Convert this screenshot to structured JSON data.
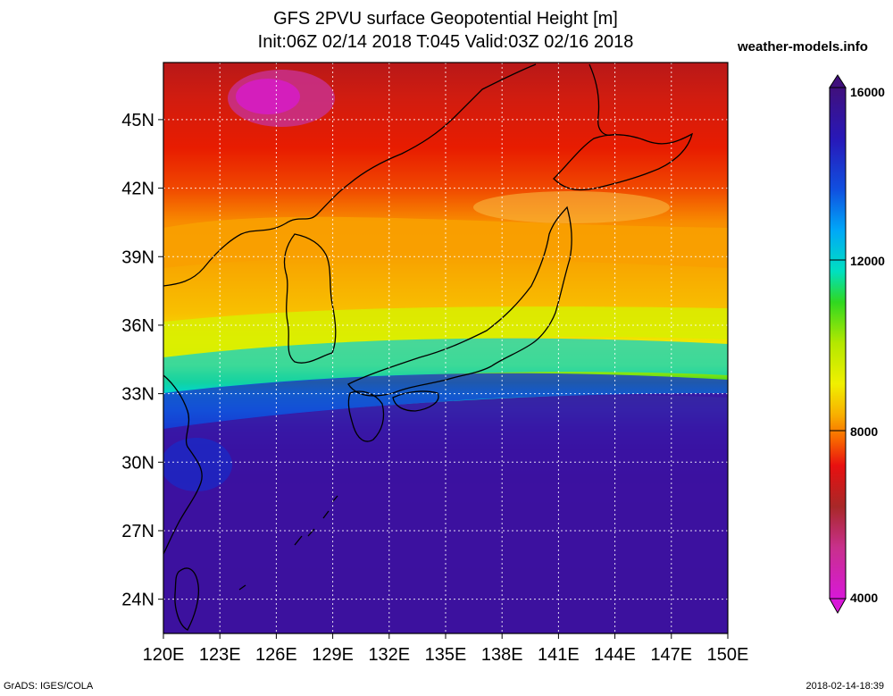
{
  "title_line1": "GFS 2PVU surface Geopotential Height [m]",
  "title_line2": "Init:06Z 02/14 2018 T:045 Valid:03Z 02/16 2018",
  "brand": "weather-models.info",
  "footer_left": "GrADS: IGES/COLA",
  "footer_right": "2018-02-14-18:39",
  "map": {
    "lon_labels": [
      "120E",
      "123E",
      "126E",
      "129E",
      "132E",
      "135E",
      "138E",
      "141E",
      "144E",
      "147E",
      "150E"
    ],
    "lat_labels": [
      "45N",
      "42N",
      "39N",
      "36N",
      "33N",
      "30N",
      "27N",
      "24N"
    ],
    "lon_range": [
      120,
      150
    ],
    "lat_range": [
      22.5,
      47.5
    ],
    "gridlines": true
  },
  "colorbar": {
    "labels": [
      "16000",
      "12000",
      "8000",
      "4000"
    ],
    "min": 4000,
    "max": 16000,
    "colors": [
      "#d818d8",
      "#c8308c",
      "#a82828",
      "#c81818",
      "#e81010",
      "#f03000",
      "#f86400",
      "#f88c00",
      "#f8b000",
      "#f8d000",
      "#f0f000",
      "#d8f000",
      "#b4e800",
      "#80e000",
      "#30d820",
      "#00d878",
      "#00e0c0",
      "#00d0f0",
      "#00a8f8",
      "#0080f0",
      "#1050e0",
      "#1830d0",
      "#2818b8",
      "#3c10a0",
      "#40107c"
    ]
  },
  "chart_data": {
    "type": "heatmap",
    "variable": "2PVU surface Geopotential Height",
    "units": "m",
    "x_range": [
      120,
      150
    ],
    "y_range": [
      22.5,
      47.5
    ],
    "scale": [
      4000,
      16000
    ],
    "contour_bands": [
      {
        "level": 4500,
        "lat": 46.5
      },
      {
        "level": 6000,
        "lat": 42.2
      },
      {
        "level": 7000,
        "lat": 40.8
      },
      {
        "level": 8000,
        "lat": 38.4
      },
      {
        "level": 9000,
        "lat": 36.6
      },
      {
        "level": 10000,
        "lat": 35.6
      },
      {
        "level": 12000,
        "lat": 34.6
      },
      {
        "level": 14000,
        "lat": 33.6
      },
      {
        "level": 15500,
        "lat": 32.6
      }
    ]
  }
}
